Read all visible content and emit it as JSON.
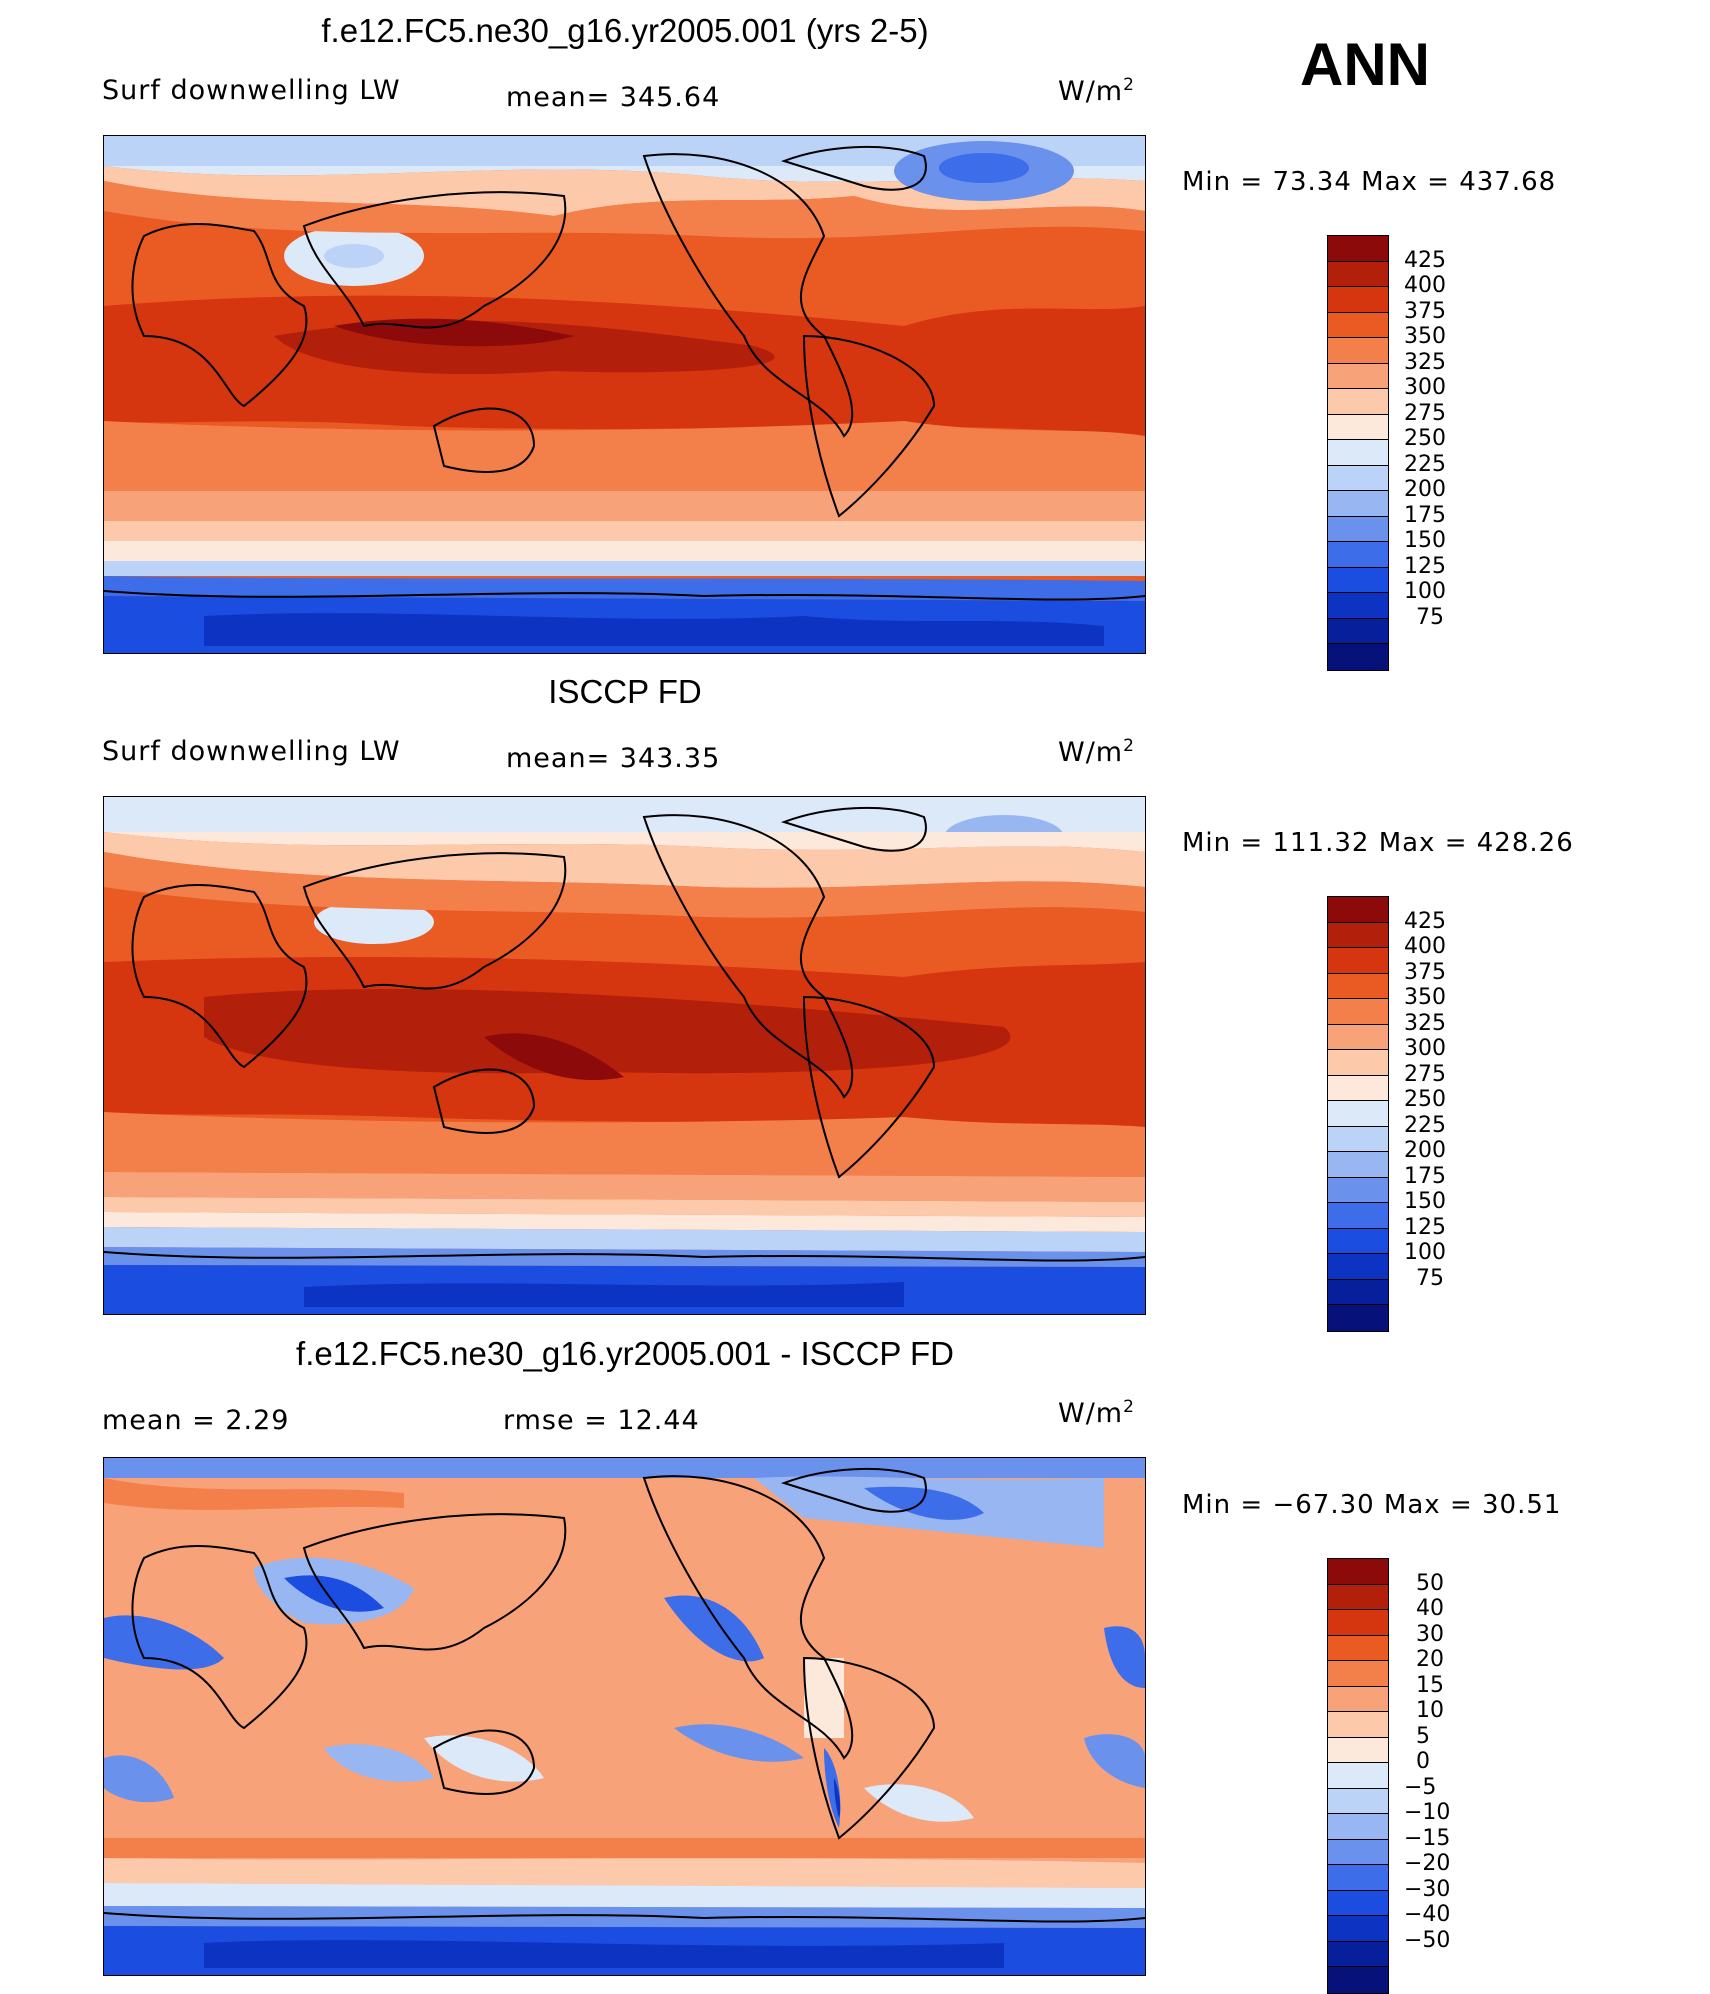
{
  "season": "ANN",
  "panels": [
    {
      "title": "f.e12.FC5.ne30_g16.yr2005.001 (yrs 2-5)",
      "left_label": "Surf downwelling LW",
      "center_label": "mean= 345.64",
      "units": "W/m",
      "units_sup": "2",
      "minmax": "Min =   73.34 Max = 437.68",
      "colorbar": {
        "colors": [
          "#8c0a0a",
          "#b21f0a",
          "#d5350f",
          "#ea5a23",
          "#f3804a",
          "#f8a27a",
          "#fcc9ab",
          "#fde9dc",
          "#dce9f9",
          "#bcd3f8",
          "#98b7f2",
          "#6a92ec",
          "#3d6de8",
          "#1a4de0",
          "#0c33c2",
          "#081f9b",
          "#06127a"
        ],
        "labels": [
          "425",
          "400",
          "375",
          "350",
          "325",
          "300",
          "275",
          "250",
          "225",
          "200",
          "175",
          "150",
          "125",
          "100",
          "75"
        ]
      }
    },
    {
      "title": "ISCCP FD",
      "left_label": "Surf downwelling LW",
      "center_label": "mean= 343.35",
      "units": "W/m",
      "units_sup": "2",
      "minmax": "Min = 111.32 Max = 428.26",
      "colorbar": {
        "colors": [
          "#8c0a0a",
          "#b21f0a",
          "#d5350f",
          "#ea5a23",
          "#f3804a",
          "#f8a27a",
          "#fcc9ab",
          "#fde9dc",
          "#dce9f9",
          "#bcd3f8",
          "#98b7f2",
          "#6a92ec",
          "#3d6de8",
          "#1a4de0",
          "#0c33c2",
          "#081f9b",
          "#06127a"
        ],
        "labels": [
          "425",
          "400",
          "375",
          "350",
          "325",
          "300",
          "275",
          "250",
          "225",
          "200",
          "175",
          "150",
          "125",
          "100",
          "75"
        ]
      }
    },
    {
      "title": "f.e12.FC5.ne30_g16.yr2005.001 - ISCCP FD",
      "left_label": "mean =    2.29",
      "center_label": "rmse =   12.44",
      "units": "W/m",
      "units_sup": "2",
      "minmax": "Min = −67.30 Max =   30.51",
      "colorbar": {
        "colors": [
          "#8c0a0a",
          "#b21f0a",
          "#d5350f",
          "#ea5a23",
          "#f3804a",
          "#f8a27a",
          "#fcc9ab",
          "#fde9dc",
          "#dce9f9",
          "#bcd3f8",
          "#98b7f2",
          "#6a92ec",
          "#3d6de8",
          "#1a4de0",
          "#0c33c2",
          "#081f9b",
          "#06127a"
        ],
        "labels": [
          "50",
          "40",
          "30",
          "20",
          "15",
          "10",
          "5",
          "0",
          "−5",
          "−10",
          "−15",
          "−20",
          "−30",
          "−40",
          "−50"
        ]
      }
    }
  ]
}
